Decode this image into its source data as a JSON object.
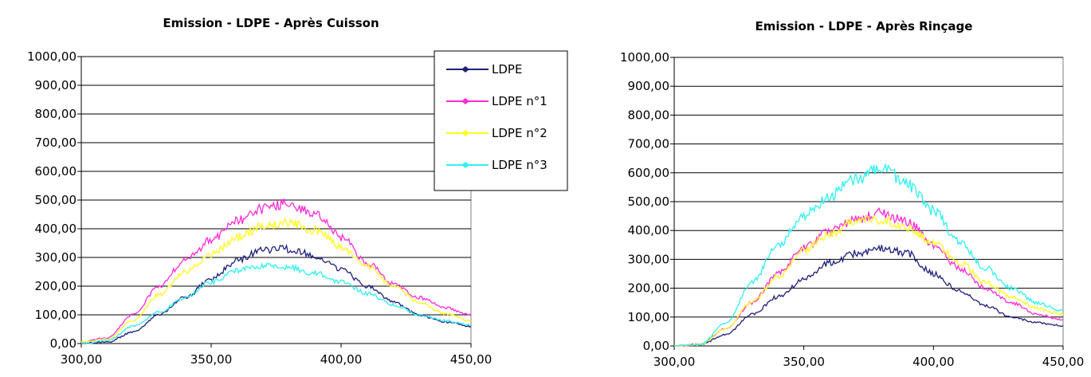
{
  "colors": {
    "LDPE": "#1f1f7a",
    "LDPE n°1": "#ff2bd6",
    "LDPE n°2": "#ffff1e",
    "LDPE n°3": "#30f0f0"
  },
  "chart_data": [
    {
      "type": "line",
      "title": "Emission - LDPE - Après Cuisson",
      "xlim": [
        300,
        450
      ],
      "ylim": [
        0,
        1000
      ],
      "xticks": [
        "300,00",
        "350,00",
        "400,00",
        "450,00"
      ],
      "yticks": [
        "0,00",
        "100,00",
        "200,00",
        "300,00",
        "400,00",
        "500,00",
        "600,00",
        "700,00",
        "800,00",
        "900,00",
        "1000,00"
      ],
      "grid": true,
      "legend": "top-right",
      "series": [
        {
          "name": "LDPE",
          "x": [
            300,
            310,
            320,
            330,
            340,
            350,
            360,
            370,
            380,
            390,
            400,
            410,
            420,
            430,
            440,
            450
          ],
          "values": [
            0,
            5,
            40,
            100,
            160,
            225,
            290,
            325,
            330,
            305,
            260,
            200,
            145,
            100,
            75,
            60
          ]
        },
        {
          "name": "LDPE n°1",
          "x": [
            300,
            310,
            320,
            330,
            340,
            350,
            360,
            370,
            380,
            390,
            400,
            410,
            420,
            430,
            440,
            450
          ],
          "values": [
            5,
            20,
            100,
            200,
            290,
            360,
            430,
            470,
            490,
            450,
            370,
            280,
            210,
            160,
            125,
            100
          ]
        },
        {
          "name": "LDPE n°2",
          "x": [
            300,
            310,
            320,
            330,
            340,
            350,
            360,
            370,
            380,
            390,
            400,
            410,
            420,
            430,
            440,
            450
          ],
          "values": [
            5,
            15,
            80,
            170,
            250,
            310,
            370,
            410,
            420,
            395,
            340,
            270,
            200,
            145,
            105,
            80
          ]
        },
        {
          "name": "LDPE n°3",
          "x": [
            300,
            310,
            320,
            330,
            340,
            350,
            360,
            370,
            380,
            390,
            400,
            410,
            420,
            430,
            440,
            450
          ],
          "values": [
            0,
            10,
            60,
            110,
            160,
            215,
            255,
            270,
            265,
            245,
            215,
            175,
            135,
            100,
            80,
            65
          ]
        }
      ]
    },
    {
      "type": "line",
      "title": "Emission - LDPE - Après Rinçage",
      "xlim": [
        300,
        450
      ],
      "ylim": [
        0,
        1000
      ],
      "xticks": [
        "300,00",
        "350,00",
        "400,00",
        "450,00"
      ],
      "yticks": [
        "0,00",
        "100,00",
        "200,00",
        "300,00",
        "400,00",
        "500,00",
        "600,00",
        "700,00",
        "800,00",
        "900,00",
        "1000,00"
      ],
      "grid": true,
      "legend": "none",
      "series": [
        {
          "name": "LDPE",
          "x": [
            300,
            310,
            320,
            330,
            340,
            350,
            360,
            370,
            380,
            390,
            400,
            410,
            420,
            430,
            440,
            450
          ],
          "values": [
            0,
            5,
            40,
            110,
            170,
            230,
            290,
            320,
            340,
            320,
            250,
            190,
            140,
            100,
            80,
            70
          ]
        },
        {
          "name": "LDPE n°1",
          "x": [
            300,
            310,
            320,
            330,
            340,
            350,
            360,
            370,
            380,
            390,
            400,
            410,
            420,
            430,
            440,
            450
          ],
          "values": [
            0,
            5,
            60,
            150,
            250,
            340,
            400,
            440,
            460,
            430,
            350,
            270,
            200,
            150,
            110,
            90
          ]
        },
        {
          "name": "LDPE n°2",
          "x": [
            300,
            310,
            320,
            330,
            340,
            350,
            360,
            370,
            380,
            390,
            400,
            410,
            420,
            430,
            440,
            450
          ],
          "values": [
            0,
            5,
            60,
            150,
            240,
            330,
            390,
            430,
            440,
            410,
            360,
            290,
            220,
            170,
            130,
            110
          ]
        },
        {
          "name": "LDPE n°3",
          "x": [
            300,
            310,
            320,
            330,
            340,
            350,
            360,
            370,
            380,
            390,
            400,
            410,
            420,
            430,
            440,
            450
          ],
          "values": [
            0,
            5,
            80,
            220,
            350,
            450,
            520,
            580,
            620,
            560,
            470,
            360,
            270,
            200,
            150,
            120
          ]
        }
      ]
    }
  ]
}
